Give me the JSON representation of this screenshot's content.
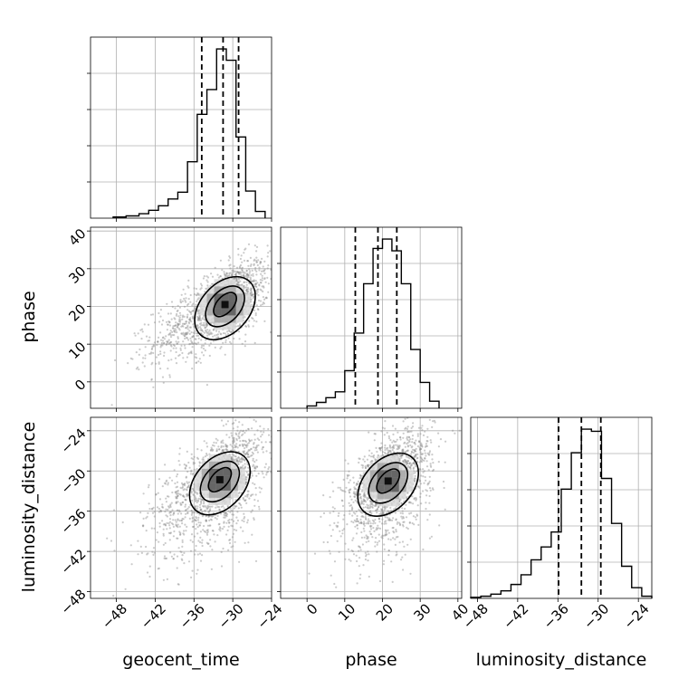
{
  "chart_data": {
    "type": "corner",
    "parameters": [
      "geocent_time",
      "phase",
      "luminosity_distance"
    ],
    "axis_ticks": {
      "geocent_time": {
        "range": [
          -52,
          -24
        ],
        "ticks": [
          -48,
          -42,
          -36,
          -30,
          -24
        ],
        "labels": [
          "−48",
          "−42",
          "−36",
          "−30",
          "−24"
        ]
      },
      "phase": {
        "range": [
          -7,
          41
        ],
        "ticks": [
          0,
          10,
          20,
          30,
          40
        ],
        "labels": [
          "0",
          "10",
          "20",
          "30",
          "40"
        ]
      },
      "luminosity_distance": {
        "range": [
          -49,
          -22
        ],
        "ticks": [
          -48,
          -42,
          -36,
          -30,
          -24
        ],
        "labels": [
          "−48",
          "−42",
          "−36",
          "−30",
          "−24"
        ]
      }
    },
    "histograms": [
      {
        "param": "geocent_time",
        "bin_edges": [
          -48.5,
          -46.5,
          -44.5,
          -43,
          -41.5,
          -40,
          -38.5,
          -37,
          -35.5,
          -34,
          -32.5,
          -31,
          -29.5,
          -28,
          -26.5,
          -25
        ],
        "counts": [
          0.5,
          1,
          2,
          3.5,
          5.5,
          8.5,
          11.5,
          25,
          46,
          57,
          75,
          70,
          36,
          12,
          3
        ],
        "quantiles": [
          -34.8,
          -31.5,
          -29.1
        ]
      },
      {
        "param": "phase",
        "bin_edges": [
          0,
          2.5,
          5,
          7.5,
          10,
          12.5,
          15,
          17.5,
          20,
          22.5,
          25,
          27.5,
          30,
          32.5,
          35
        ],
        "counts": [
          1,
          2.5,
          4.5,
          7,
          16,
          32,
          53,
          68,
          72,
          67,
          53,
          25,
          11,
          3
        ],
        "quantiles": [
          12.8,
          18.8,
          23.8
        ]
      },
      {
        "param": "luminosity_distance",
        "bin_edges": [
          -49,
          -47.5,
          -46,
          -44.5,
          -43,
          -41.5,
          -40,
          -38.5,
          -37,
          -35.5,
          -34,
          -32.5,
          -31,
          -29.5,
          -28,
          -26.5,
          -25,
          -23.5,
          -22
        ],
        "counts": [
          0.5,
          1,
          2,
          3.5,
          6.5,
          11,
          18,
          24,
          31,
          51,
          68,
          79,
          78,
          56,
          35,
          15,
          5,
          1
        ],
        "quantiles": [
          -35.9,
          -32.5,
          -29.6
        ]
      }
    ],
    "scatter_panels": [
      {
        "x": "geocent_time",
        "y": "phase",
        "peak": [
          -31.2,
          20.5
        ]
      },
      {
        "x": "geocent_time",
        "y": "luminosity_distance",
        "peak": [
          -32,
          -31.3
        ]
      },
      {
        "x": "phase",
        "y": "luminosity_distance",
        "peak": [
          21.5,
          -31.5
        ]
      }
    ],
    "grid": true,
    "colors": {
      "points": "#8c8c8c",
      "lines": "#000000",
      "grid": "#b0b0b0"
    }
  }
}
